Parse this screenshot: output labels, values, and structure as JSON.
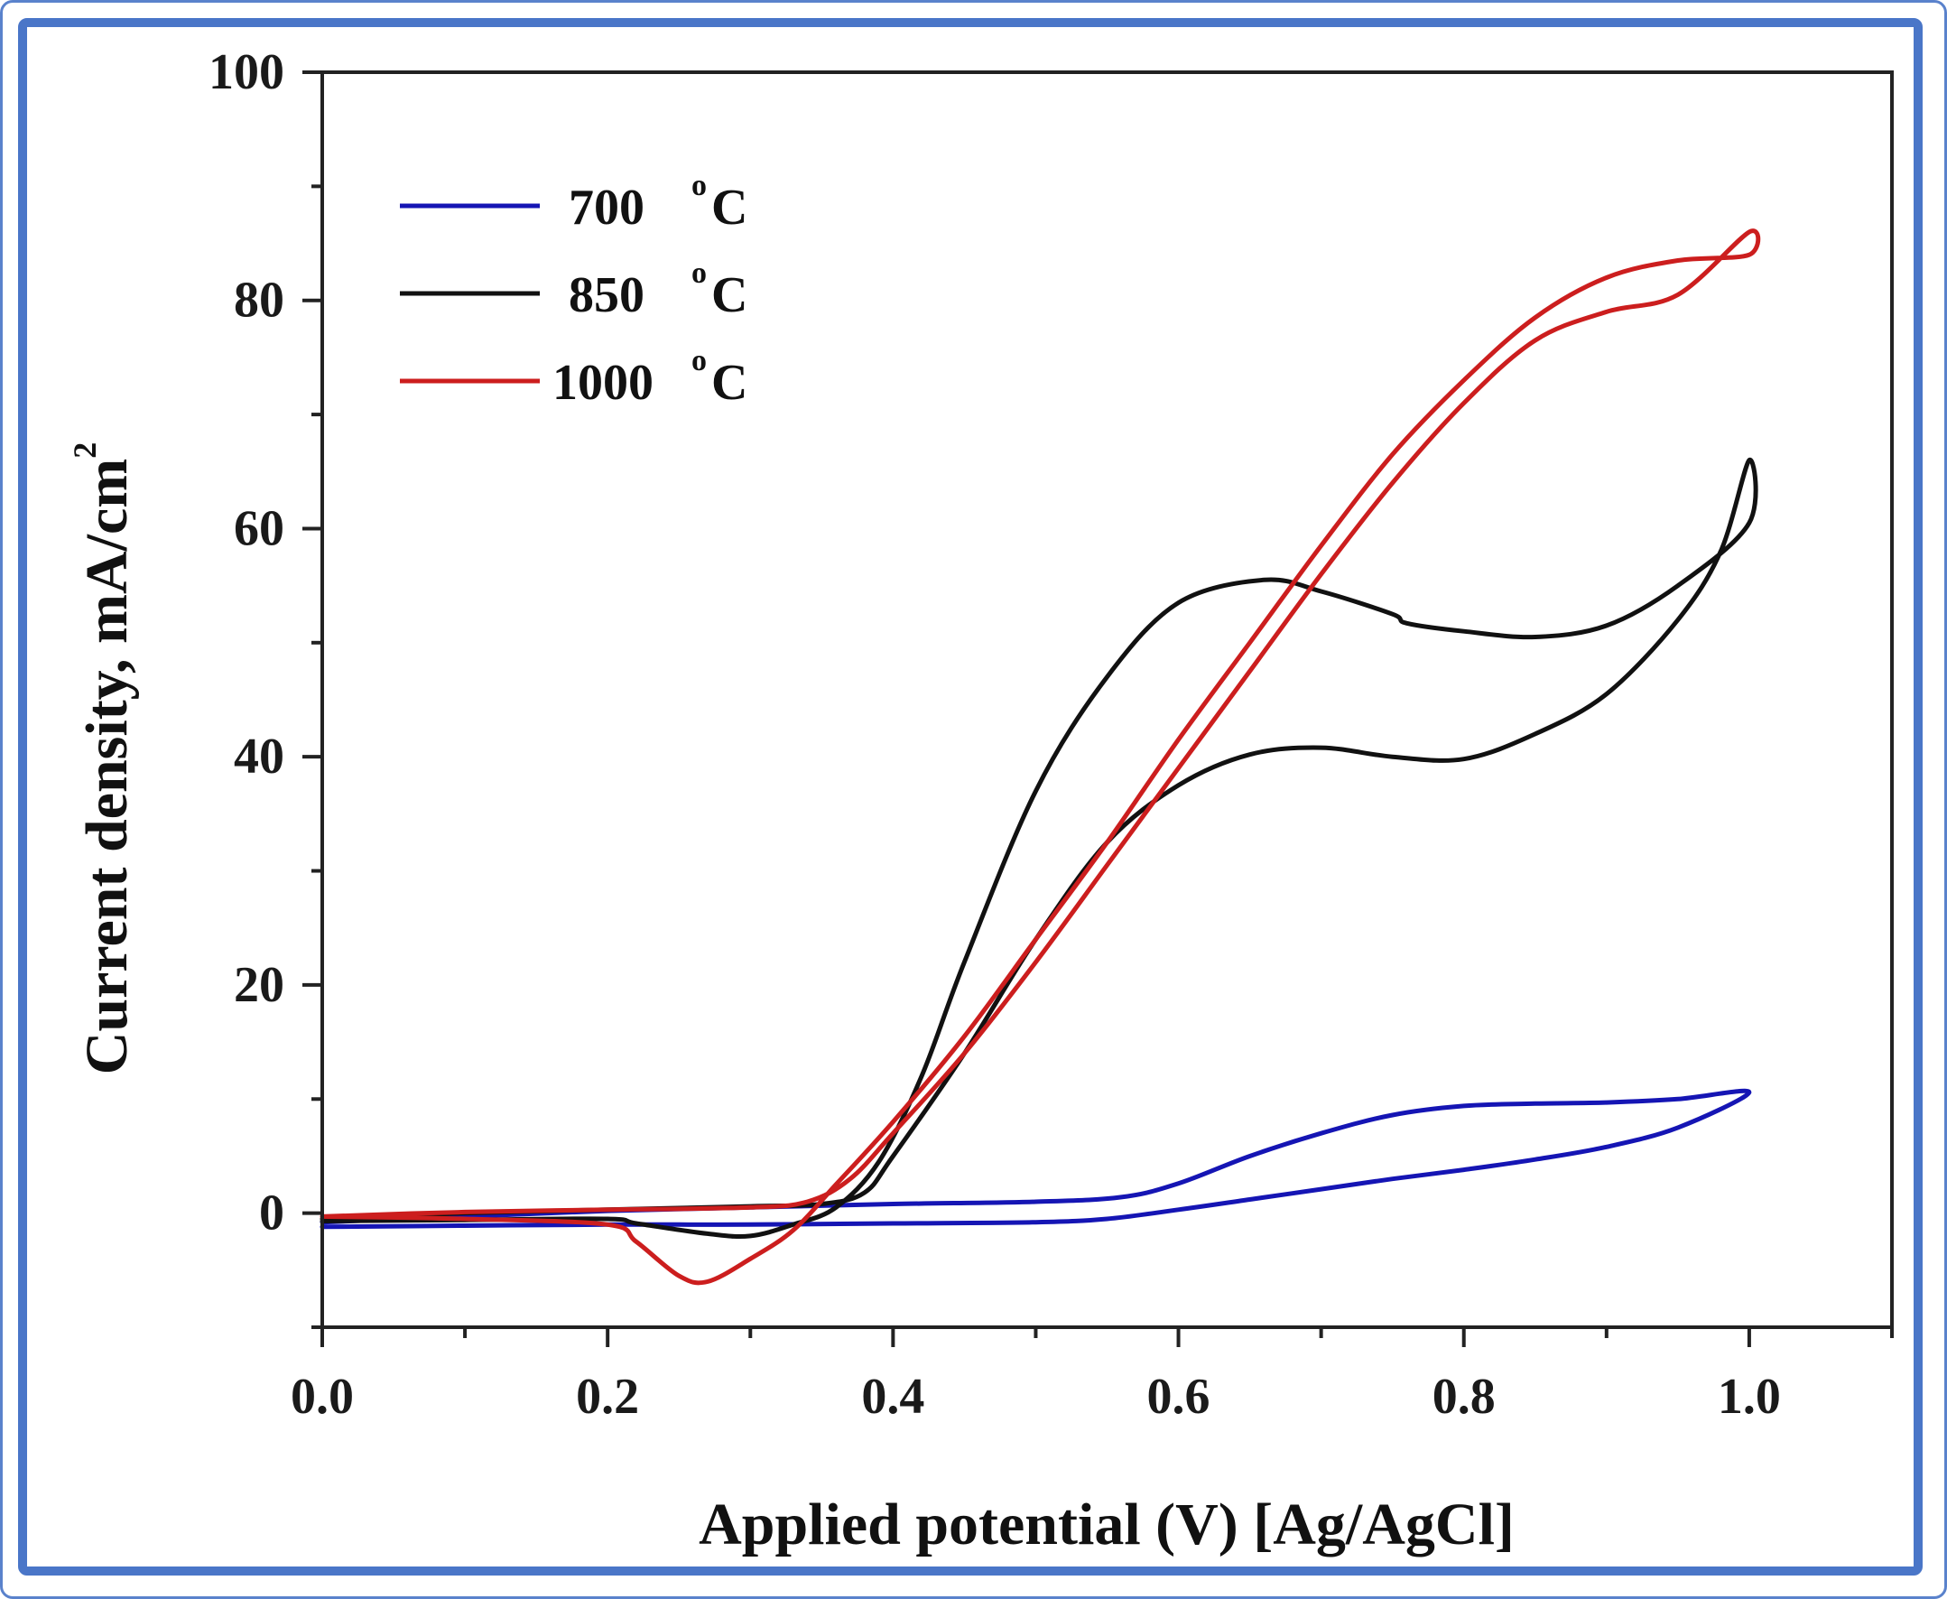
{
  "chart_data": {
    "type": "line",
    "xlabel": "Applied potential (V) [Ag/AgCl]",
    "ylabel": "Current density, mA/cm",
    "ylabel_superscript": "2",
    "xlim": [
      0.0,
      1.1
    ],
    "ylim": [
      -10,
      100
    ],
    "x_ticks": [
      "0.0",
      "0.2",
      "0.4",
      "0.6",
      "0.8",
      "1.0"
    ],
    "y_ticks": [
      "0",
      "20",
      "40",
      "60",
      "80",
      "100"
    ],
    "legend_position": "top-left",
    "series": [
      {
        "name": "700 °C",
        "label_main": "700",
        "label_unit": "C",
        "label_sup": "o",
        "color": "#1515b4",
        "points": [
          [
            0.0,
            -0.8
          ],
          [
            0.1,
            -0.3
          ],
          [
            0.2,
            0.2
          ],
          [
            0.3,
            0.5
          ],
          [
            0.4,
            0.8
          ],
          [
            0.5,
            1.0
          ],
          [
            0.56,
            1.4
          ],
          [
            0.6,
            2.6
          ],
          [
            0.65,
            5.0
          ],
          [
            0.7,
            7.0
          ],
          [
            0.75,
            8.6
          ],
          [
            0.8,
            9.4
          ],
          [
            0.85,
            9.6
          ],
          [
            0.9,
            9.7
          ],
          [
            0.95,
            10.0
          ],
          [
            1.0,
            10.6
          ],
          [
            0.95,
            7.5
          ],
          [
            0.9,
            5.8
          ],
          [
            0.85,
            4.7
          ],
          [
            0.8,
            3.8
          ],
          [
            0.75,
            3.0
          ],
          [
            0.7,
            2.1
          ],
          [
            0.65,
            1.2
          ],
          [
            0.6,
            0.3
          ],
          [
            0.55,
            -0.5
          ],
          [
            0.5,
            -0.8
          ],
          [
            0.4,
            -0.9
          ],
          [
            0.3,
            -1.0
          ],
          [
            0.2,
            -1.0
          ],
          [
            0.1,
            -1.1
          ],
          [
            0.0,
            -1.2
          ]
        ]
      },
      {
        "name": "850 °C",
        "label_main": "850",
        "label_unit": "C",
        "label_sup": "o",
        "color": "#111111",
        "points": [
          [
            0.0,
            -0.5
          ],
          [
            0.1,
            0.0
          ],
          [
            0.2,
            0.3
          ],
          [
            0.3,
            0.6
          ],
          [
            0.35,
            0.8
          ],
          [
            0.38,
            1.8
          ],
          [
            0.4,
            5.0
          ],
          [
            0.45,
            14.0
          ],
          [
            0.5,
            24.0
          ],
          [
            0.55,
            32.5
          ],
          [
            0.6,
            37.5
          ],
          [
            0.65,
            40.2
          ],
          [
            0.7,
            40.8
          ],
          [
            0.75,
            40.0
          ],
          [
            0.8,
            39.8
          ],
          [
            0.85,
            42.0
          ],
          [
            0.9,
            45.5
          ],
          [
            0.95,
            52.0
          ],
          [
            0.98,
            58.0
          ],
          [
            1.0,
            66.0
          ],
          [
            1.0,
            60.5
          ],
          [
            0.95,
            55.0
          ],
          [
            0.9,
            51.5
          ],
          [
            0.85,
            50.5
          ],
          [
            0.8,
            51.0
          ],
          [
            0.76,
            51.7
          ],
          [
            0.75,
            52.5
          ],
          [
            0.7,
            54.5
          ],
          [
            0.66,
            55.5
          ],
          [
            0.6,
            53.5
          ],
          [
            0.55,
            47.0
          ],
          [
            0.5,
            37.0
          ],
          [
            0.45,
            22.0
          ],
          [
            0.42,
            12.0
          ],
          [
            0.39,
            4.5
          ],
          [
            0.36,
            0.5
          ],
          [
            0.33,
            -1.0
          ],
          [
            0.3,
            -2.0
          ],
          [
            0.27,
            -1.8
          ],
          [
            0.22,
            -0.9
          ],
          [
            0.2,
            -0.5
          ],
          [
            0.1,
            -0.6
          ],
          [
            0.0,
            -0.7
          ]
        ]
      },
      {
        "name": "1000 °C",
        "label_main": "1000",
        "label_unit": "C",
        "label_sup": "o",
        "color": "#cc1e1e",
        "points": [
          [
            0.0,
            -0.3
          ],
          [
            0.1,
            0.1
          ],
          [
            0.2,
            0.3
          ],
          [
            0.3,
            0.5
          ],
          [
            0.34,
            1.0
          ],
          [
            0.37,
            3.0
          ],
          [
            0.4,
            7.0
          ],
          [
            0.45,
            14.0
          ],
          [
            0.5,
            22.0
          ],
          [
            0.55,
            30.5
          ],
          [
            0.6,
            39.0
          ],
          [
            0.65,
            47.5
          ],
          [
            0.7,
            56.0
          ],
          [
            0.75,
            64.0
          ],
          [
            0.8,
            71.0
          ],
          [
            0.85,
            76.5
          ],
          [
            0.9,
            79.0
          ],
          [
            0.95,
            80.5
          ],
          [
            1.0,
            86.0
          ],
          [
            1.0,
            84.0
          ],
          [
            0.95,
            83.5
          ],
          [
            0.9,
            82.0
          ],
          [
            0.85,
            78.5
          ],
          [
            0.8,
            73.0
          ],
          [
            0.75,
            66.5
          ],
          [
            0.7,
            58.5
          ],
          [
            0.65,
            50.0
          ],
          [
            0.6,
            41.5
          ],
          [
            0.55,
            32.5
          ],
          [
            0.5,
            24.0
          ],
          [
            0.45,
            15.5
          ],
          [
            0.4,
            8.0
          ],
          [
            0.36,
            2.5
          ],
          [
            0.33,
            -1.5
          ],
          [
            0.3,
            -4.0
          ],
          [
            0.27,
            -6.0
          ],
          [
            0.25,
            -5.5
          ],
          [
            0.22,
            -2.5
          ],
          [
            0.2,
            -1.0
          ],
          [
            0.1,
            -0.5
          ],
          [
            0.0,
            -0.3
          ]
        ]
      }
    ]
  }
}
